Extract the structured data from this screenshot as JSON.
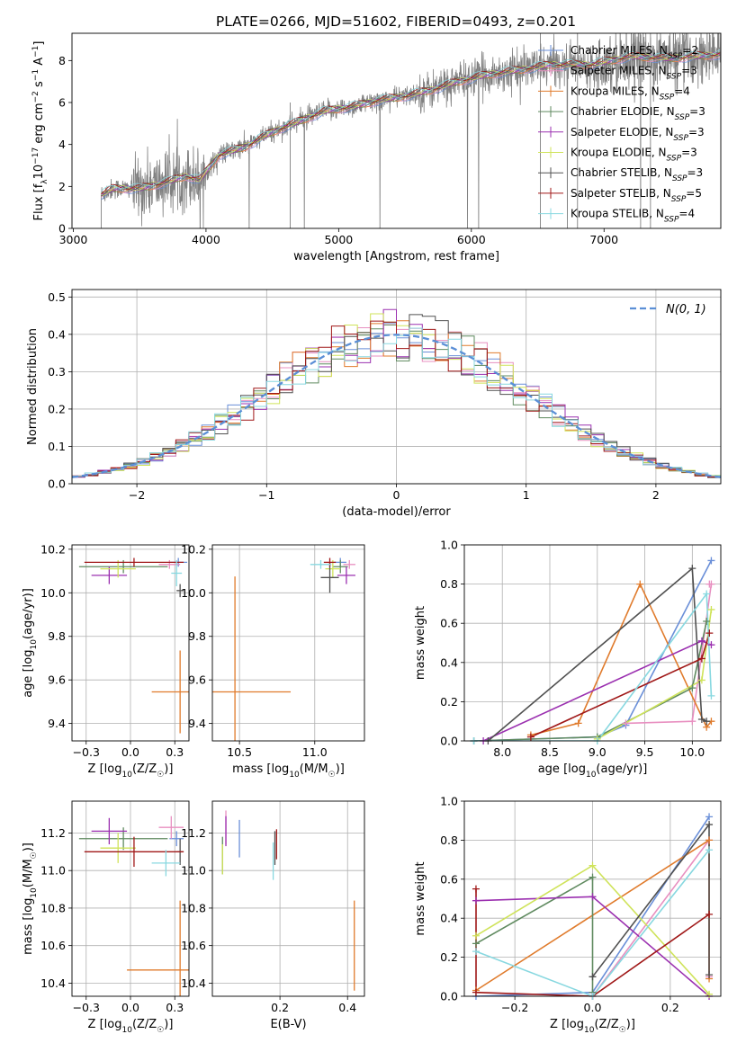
{
  "figure_title": "PLATE=0266, MJD=51602, FIBERID=0493, z=0.201",
  "model_colors": {
    "Chabrier MILES": "#6a8fd8",
    "Salpeter MILES": "#e88fc0",
    "Kroupa MILES": "#e07b2c",
    "Chabrier ELODIE": "#5f8a5f",
    "Salpeter ELODIE": "#9b30b0",
    "Kroupa ELODIE": "#cfe35a",
    "Chabrier STELIB": "#505050",
    "Salpeter STELIB": "#a01818",
    "Kroupa STELIB": "#88d8e0"
  },
  "chart_data": [
    {
      "id": "spectrum",
      "type": "line",
      "xlabel": "wavelength [Angstrom, rest frame]",
      "ylabel": "Flux [f_λ 10^-17 erg cm^-2 s^-1 A^-1]",
      "xlim": [
        2990,
        7880
      ],
      "ylim": [
        0,
        9.3
      ],
      "xticks": [
        3000,
        4000,
        5000,
        6000,
        7000
      ],
      "yticks": [
        0,
        2,
        4,
        6,
        8
      ],
      "grid": false,
      "legend_position": "upper right",
      "legend": [
        {
          "label": "Chabrier MILES, N",
          "sub": "SSP",
          "suffix": "=2",
          "model": "Chabrier MILES"
        },
        {
          "label": "Salpeter MILES, N",
          "sub": "SSP",
          "suffix": "=3",
          "model": "Salpeter MILES"
        },
        {
          "label": "Kroupa MILES, N",
          "sub": "SSP",
          "suffix": "=4",
          "model": "Kroupa MILES"
        },
        {
          "label": "Chabrier ELODIE, N",
          "sub": "SSP",
          "suffix": "=3",
          "model": "Chabrier ELODIE"
        },
        {
          "label": "Salpeter ELODIE, N",
          "sub": "SSP",
          "suffix": "=3",
          "model": "Salpeter ELODIE"
        },
        {
          "label": "Kroupa ELODIE, N",
          "sub": "SSP",
          "suffix": "=3",
          "model": "Kroupa ELODIE"
        },
        {
          "label": "Chabrier STELIB, N",
          "sub": "SSP",
          "suffix": "=3",
          "model": "Chabrier STELIB"
        },
        {
          "label": "Salpeter STELIB, N",
          "sub": "SSP",
          "suffix": "=5",
          "model": "Salpeter STELIB"
        },
        {
          "label": "Kroupa STELIB, N",
          "sub": "SSP",
          "suffix": "=4",
          "model": "Kroupa STELIB"
        }
      ],
      "data_color": "#808080",
      "data_range": [
        3210,
        7880
      ],
      "continuum_points": [
        [
          3210,
          1.6
        ],
        [
          3300,
          1.9
        ],
        [
          3500,
          1.9
        ],
        [
          3700,
          2.2
        ],
        [
          3850,
          2.5
        ],
        [
          3950,
          2.3
        ],
        [
          4100,
          3.5
        ],
        [
          4300,
          3.9
        ],
        [
          4500,
          4.6
        ],
        [
          4700,
          5.1
        ],
        [
          4900,
          5.6
        ],
        [
          5100,
          5.8
        ],
        [
          5300,
          6.1
        ],
        [
          5500,
          6.3
        ],
        [
          5700,
          6.6
        ],
        [
          5900,
          7.0
        ],
        [
          6100,
          7.3
        ],
        [
          6300,
          7.5
        ],
        [
          6600,
          7.8
        ],
        [
          6900,
          7.8
        ],
        [
          7200,
          8.2
        ],
        [
          7500,
          8.1
        ],
        [
          7880,
          8.3
        ]
      ]
    },
    {
      "id": "residuals",
      "type": "line",
      "xlabel": "(data-model)/error",
      "ylabel": "Normed distribution",
      "xlim": [
        -2.5,
        2.5
      ],
      "ylim": [
        0,
        0.52
      ],
      "xticks": [
        -2,
        -1,
        0,
        1,
        2
      ],
      "yticks": [
        0.0,
        0.1,
        0.2,
        0.3,
        0.4,
        0.5
      ],
      "grid": true,
      "legend_position": "upper right",
      "reference_label": "N(0, 1)",
      "reference_color": "#5b8fd6",
      "bin_width": 0.1
    },
    {
      "id": "age-vs-Z",
      "type": "scatter",
      "xlabel": "Z [log10(Z/Z☉)]",
      "ylabel": "age  [log10(age/yr)]",
      "xlim": [
        -0.33,
        0.33
      ],
      "ylim": [
        9.32,
        10.22
      ],
      "xticks": [
        -0.25,
        0.0,
        0.25
      ],
      "yticks": [
        9.4,
        9.6,
        9.8,
        10.0,
        10.2
      ],
      "grid": true,
      "points": [
        {
          "model": "Chabrier MILES",
          "x": 0.27,
          "y": 10.14,
          "xerr": 0.05,
          "yerr": 0.02
        },
        {
          "model": "Salpeter MILES",
          "x": 0.22,
          "y": 10.13,
          "xerr": 0.06,
          "yerr": 0.02
        },
        {
          "model": "Kroupa MILES",
          "x": 0.28,
          "y": 9.545,
          "xerr": 0.16,
          "yerr": 0.19
        },
        {
          "model": "Chabrier ELODIE",
          "x": -0.04,
          "y": 10.12,
          "xerr": 0.25,
          "yerr": 0.03
        },
        {
          "model": "Salpeter ELODIE",
          "x": -0.12,
          "y": 10.08,
          "xerr": 0.1,
          "yerr": 0.04
        },
        {
          "model": "Kroupa ELODIE",
          "x": -0.07,
          "y": 10.11,
          "xerr": 0.1,
          "yerr": 0.04
        },
        {
          "model": "Chabrier STELIB",
          "x": 0.28,
          "y": 10.01,
          "xerr": 0.02,
          "yerr": 0.03
        },
        {
          "model": "Salpeter STELIB",
          "x": 0.02,
          "y": 10.14,
          "xerr": 0.28,
          "yerr": 0.02
        },
        {
          "model": "Kroupa STELIB",
          "x": 0.26,
          "y": 10.09,
          "xerr": 0.03,
          "yerr": 0.06
        }
      ]
    },
    {
      "id": "age-vs-mass",
      "type": "scatter",
      "xlabel": "mass [log10(M/M☉)]",
      "ylabel": "",
      "xlim": [
        10.32,
        11.33
      ],
      "ylim": [
        9.32,
        10.22
      ],
      "xticks": [
        10.5,
        11.0
      ],
      "yticks": [
        9.4,
        9.6,
        9.8,
        10.0,
        10.2
      ],
      "grid": true,
      "points": [
        {
          "model": "Chabrier MILES",
          "x": 11.17,
          "y": 10.14,
          "xerr": 0.04,
          "yerr": 0.02
        },
        {
          "model": "Salpeter MILES",
          "x": 11.23,
          "y": 10.13,
          "xerr": 0.04,
          "yerr": 0.02
        },
        {
          "model": "Kroupa MILES",
          "x": 10.47,
          "y": 9.545,
          "xerr": 0.37,
          "yerr": 0.53
        },
        {
          "model": "Chabrier ELODIE",
          "x": 11.17,
          "y": 10.12,
          "xerr": 0.05,
          "yerr": 0.03
        },
        {
          "model": "Salpeter ELODIE",
          "x": 11.21,
          "y": 10.08,
          "xerr": 0.06,
          "yerr": 0.04
        },
        {
          "model": "Kroupa ELODIE",
          "x": 11.12,
          "y": 10.11,
          "xerr": 0.05,
          "yerr": 0.04
        },
        {
          "model": "Chabrier STELIB",
          "x": 11.1,
          "y": 10.07,
          "xerr": 0.06,
          "yerr": 0.07
        },
        {
          "model": "Salpeter STELIB",
          "x": 11.1,
          "y": 10.14,
          "xerr": 0.04,
          "yerr": 0.02
        },
        {
          "model": "Kroupa STELIB",
          "x": 11.04,
          "y": 10.13,
          "xerr": 0.07,
          "yerr": 0.02
        }
      ]
    },
    {
      "id": "weight-vs-age",
      "type": "line",
      "xlabel": "age  [log10(age/yr)]",
      "ylabel": "mass weight",
      "xlim": [
        7.6,
        10.3
      ],
      "ylim": [
        0,
        1.0
      ],
      "xticks": [
        8.0,
        8.5,
        9.0,
        9.5,
        10.0
      ],
      "yticks": [
        0.0,
        0.2,
        0.4,
        0.6,
        0.8,
        1.0
      ],
      "grid": true,
      "series": [
        {
          "model": "Chabrier MILES",
          "x": [
            7.7,
            9.0,
            9.3,
            10.2
          ],
          "y": [
            0.0,
            0.02,
            0.08,
            0.92
          ]
        },
        {
          "model": "Salpeter MILES",
          "x": [
            9.3,
            10.0,
            10.2,
            10.18
          ],
          "y": [
            0.09,
            0.1,
            0.8,
            0.8
          ]
        },
        {
          "model": "Kroupa MILES",
          "x": [
            8.3,
            8.8,
            9.45,
            10.15,
            10.2
          ],
          "y": [
            0.03,
            0.09,
            0.8,
            0.07,
            0.1
          ]
        },
        {
          "model": "Chabrier ELODIE",
          "x": [
            7.7,
            9.0,
            10.0,
            10.15
          ],
          "y": [
            0.0,
            0.02,
            0.27,
            0.61
          ]
        },
        {
          "model": "Salpeter ELODIE",
          "x": [
            7.8,
            10.1,
            10.2
          ],
          "y": [
            0.0,
            0.51,
            0.49
          ]
        },
        {
          "model": "Kroupa ELODIE",
          "x": [
            9.0,
            10.1,
            10.2
          ],
          "y": [
            0.01,
            0.31,
            0.67
          ]
        },
        {
          "model": "Chabrier STELIB",
          "x": [
            7.85,
            10.0,
            10.1,
            10.15
          ],
          "y": [
            0.0,
            0.88,
            0.11,
            0.1
          ]
        },
        {
          "model": "Salpeter STELIB",
          "x": [
            8.3,
            10.1,
            10.18
          ],
          "y": [
            0.02,
            0.42,
            0.55
          ]
        },
        {
          "model": "Kroupa STELIB",
          "x": [
            7.7,
            9.0,
            10.15,
            10.2
          ],
          "y": [
            0.0,
            0.0,
            0.75,
            0.23
          ]
        }
      ]
    },
    {
      "id": "mass-vs-Z",
      "type": "scatter",
      "xlabel": "Z [log10(Z/Z☉)]",
      "ylabel": "mass [log10(M/M☉)]",
      "xlim": [
        -0.33,
        0.33
      ],
      "ylim": [
        10.33,
        11.37
      ],
      "xticks": [
        -0.25,
        0.0,
        0.25
      ],
      "yticks": [
        10.4,
        10.6,
        10.8,
        11.0,
        11.2
      ],
      "grid": true,
      "points": [
        {
          "model": "Chabrier MILES",
          "x": 0.26,
          "y": 11.17,
          "xerr": 0.04,
          "yerr": 0.04
        },
        {
          "model": "Salpeter MILES",
          "x": 0.23,
          "y": 11.23,
          "xerr": 0.07,
          "yerr": 0.06
        },
        {
          "model": "Kroupa MILES",
          "x": 0.28,
          "y": 10.47,
          "xerr": 0.3,
          "yerr": 0.37
        },
        {
          "model": "Chabrier ELODIE",
          "x": -0.04,
          "y": 11.17,
          "xerr": 0.25,
          "yerr": 0.06
        },
        {
          "model": "Salpeter ELODIE",
          "x": -0.12,
          "y": 11.21,
          "xerr": 0.1,
          "yerr": 0.07
        },
        {
          "model": "Kroupa ELODIE",
          "x": -0.07,
          "y": 11.12,
          "xerr": 0.1,
          "yerr": 0.08
        },
        {
          "model": "Chabrier STELIB",
          "x": 0.28,
          "y": 11.1,
          "xerr": 0.02,
          "yerr": 0.07
        },
        {
          "model": "Salpeter STELIB",
          "x": 0.02,
          "y": 11.1,
          "xerr": 0.28,
          "yerr": 0.08
        },
        {
          "model": "Kroupa STELIB",
          "x": 0.2,
          "y": 11.04,
          "xerr": 0.08,
          "yerr": 0.07
        }
      ]
    },
    {
      "id": "mass-vs-ebv",
      "type": "scatter",
      "xlabel": "E(B-V)",
      "ylabel": "",
      "xlim": [
        0.0,
        0.45
      ],
      "ylim": [
        10.33,
        11.37
      ],
      "xticks": [
        0.2,
        0.4
      ],
      "yticks": [
        10.4,
        10.6,
        10.8,
        11.0,
        11.2
      ],
      "grid": true,
      "points": [
        {
          "model": "Chabrier MILES",
          "x": 0.08,
          "y": 11.17,
          "xerr": 0.0,
          "yerr": 0.1
        },
        {
          "model": "Salpeter MILES",
          "x": 0.04,
          "y": 11.23,
          "xerr": 0.0,
          "yerr": 0.09
        },
        {
          "model": "Kroupa MILES",
          "x": 0.42,
          "y": 10.6,
          "xerr": 0.0,
          "yerr": 0.24
        },
        {
          "model": "Chabrier ELODIE",
          "x": 0.03,
          "y": 11.08,
          "xerr": 0.0,
          "yerr": 0.1
        },
        {
          "model": "Salpeter ELODIE",
          "x": 0.04,
          "y": 11.21,
          "xerr": 0.0,
          "yerr": 0.08
        },
        {
          "model": "Kroupa ELODIE",
          "x": 0.03,
          "y": 11.06,
          "xerr": 0.0,
          "yerr": 0.08
        },
        {
          "model": "Chabrier STELIB",
          "x": 0.185,
          "y": 11.12,
          "xerr": 0.0,
          "yerr": 0.09
        },
        {
          "model": "Salpeter STELIB",
          "x": 0.19,
          "y": 11.14,
          "xerr": 0.0,
          "yerr": 0.08
        },
        {
          "model": "Kroupa STELIB",
          "x": 0.18,
          "y": 11.05,
          "xerr": 0.0,
          "yerr": 0.1
        }
      ]
    },
    {
      "id": "weight-vs-Z",
      "type": "line",
      "xlabel": "Z [log10(Z/Z☉)]",
      "ylabel": "mass weight",
      "xlim": [
        -0.33,
        0.33
      ],
      "ylim": [
        0,
        1.0
      ],
      "xticks": [
        -0.2,
        0.0,
        0.2
      ],
      "yticks": [
        0.0,
        0.2,
        0.4,
        0.6,
        0.8,
        1.0
      ],
      "grid": true,
      "series": [
        {
          "model": "Chabrier MILES",
          "x": [
            -0.3,
            0.0,
            0.3
          ],
          "y": [
            0.0,
            0.02,
            0.92
          ]
        },
        {
          "model": "Salpeter MILES",
          "x": [
            0.0,
            0.3,
            0.3
          ],
          "y": [
            0.0,
            0.8,
            0.1
          ]
        },
        {
          "model": "Kroupa MILES",
          "x": [
            -0.3,
            0.3,
            0.3
          ],
          "y": [
            0.03,
            0.8,
            0.09
          ]
        },
        {
          "model": "Chabrier ELODIE",
          "x": [
            -0.3,
            0.0,
            0.0
          ],
          "y": [
            0.27,
            0.61,
            0.02
          ]
        },
        {
          "model": "Salpeter ELODIE",
          "x": [
            -0.3,
            0.0,
            0.3
          ],
          "y": [
            0.49,
            0.51,
            0.0
          ]
        },
        {
          "model": "Kroupa ELODIE",
          "x": [
            -0.3,
            0.0,
            0.3
          ],
          "y": [
            0.31,
            0.67,
            0.01
          ]
        },
        {
          "model": "Chabrier STELIB",
          "x": [
            0.0,
            0.3,
            0.3
          ],
          "y": [
            0.1,
            0.88,
            0.11
          ]
        },
        {
          "model": "Salpeter STELIB",
          "x": [
            -0.3,
            -0.3,
            0.0,
            0.3
          ],
          "y": [
            0.55,
            0.02,
            0.0,
            0.42
          ]
        },
        {
          "model": "Kroupa STELIB",
          "x": [
            -0.3,
            0.0,
            0.3
          ],
          "y": [
            0.23,
            0.0,
            0.75
          ]
        }
      ]
    }
  ]
}
